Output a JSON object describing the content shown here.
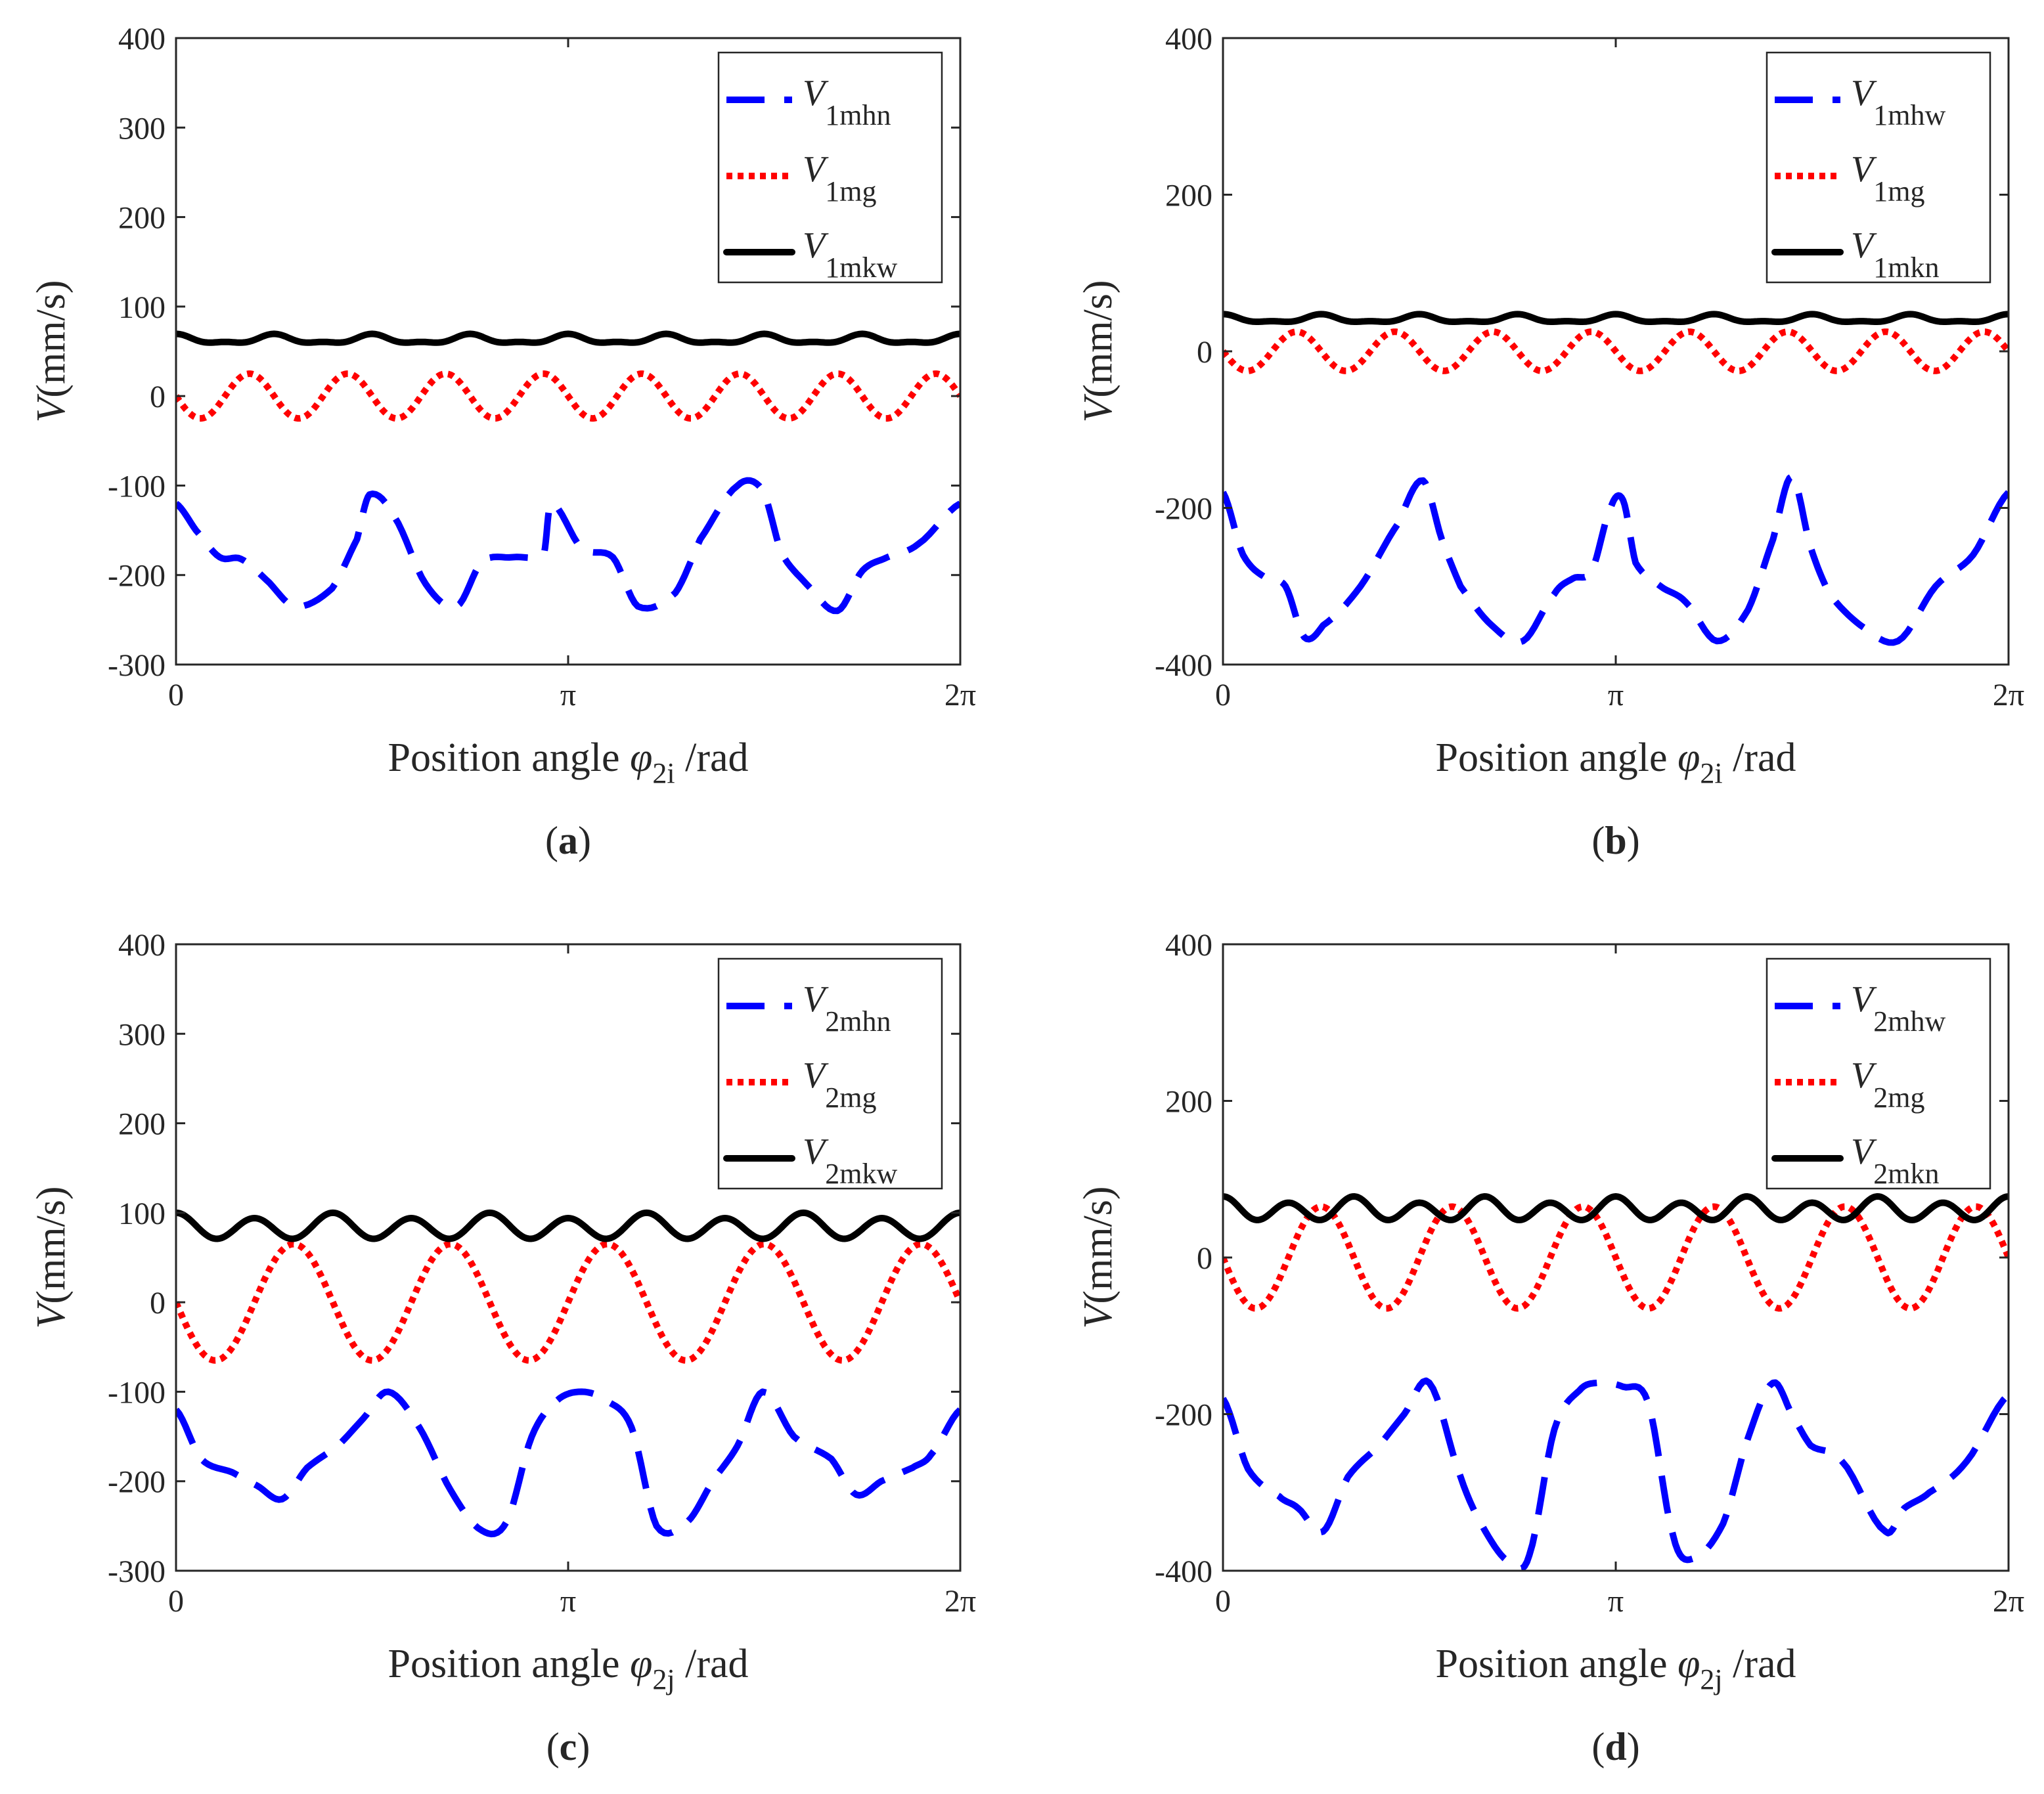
{
  "chart_data": [
    {
      "panel": "(a)",
      "caption_letter": "a",
      "type": "line",
      "xlabel": "Position angle",
      "xsymbol": "φ",
      "xsymbol_sub": "2i",
      "xunit": "/rad",
      "ylabel_symbol": "V",
      "ylabel_unit": "(mm/s)",
      "xlim": [
        0,
        6.2832
      ],
      "ylim": [
        -300,
        400
      ],
      "yticks": [
        -300,
        -200,
        -100,
        0,
        100,
        200,
        300,
        400
      ],
      "xtick_labels": [
        "0",
        "π",
        "2π"
      ],
      "xtick_values": [
        0,
        3.1416,
        6.2832
      ],
      "legend_position": "top-right",
      "series": [
        {
          "name_symbol": "V",
          "name_sub": "1mhn",
          "style": "dashed",
          "color": "#0000ff",
          "x": [
            0,
            0.16,
            0.35,
            0.52,
            0.72,
            0.95,
            1.25,
            1.45,
            1.55,
            1.75,
            2.0,
            2.25,
            2.45,
            2.7,
            2.95,
            3.0,
            3.25,
            3.5,
            3.7,
            4.0,
            4.2,
            4.5,
            4.7,
            4.85,
            5.05,
            5.3,
            5.5,
            5.7,
            5.95,
            6.2832
          ],
          "y": [
            -120,
            -150,
            -180,
            -182,
            -205,
            -235,
            -215,
            -160,
            -110,
            -135,
            -210,
            -235,
            -185,
            -180,
            -175,
            -120,
            -170,
            -180,
            -235,
            -220,
            -160,
            -100,
            -105,
            -175,
            -210,
            -240,
            -195,
            -180,
            -165,
            -120
          ]
        },
        {
          "name_symbol": "V",
          "name_sub": "1mg",
          "style": "dotted",
          "color": "#ff0000",
          "fn": "sine",
          "amplitude": -25,
          "cycles": 8,
          "offset": 0
        },
        {
          "name_symbol": "V",
          "name_sub": "1mkw",
          "style": "solid",
          "color": "#000000",
          "fn": "ripple",
          "mean": 63,
          "amplitude": 4.5,
          "cycles": 8,
          "amplitude2": 2,
          "cycles2": 16
        }
      ]
    },
    {
      "panel": "(b)",
      "caption_letter": "b",
      "type": "line",
      "xlabel": "Position angle",
      "xsymbol": "φ",
      "xsymbol_sub": "2i",
      "xunit": "/rad",
      "ylabel_symbol": "V",
      "ylabel_unit": "(mm/s)",
      "xlim": [
        0,
        6.2832
      ],
      "ylim": [
        -400,
        400
      ],
      "yticks": [
        -400,
        -200,
        0,
        200,
        400
      ],
      "xtick_labels": [
        "0",
        "π",
        "2π"
      ],
      "xtick_values": [
        0,
        3.1416,
        6.2832
      ],
      "legend_position": "top-right",
      "series": [
        {
          "name_symbol": "V",
          "name_sub": "1mhw",
          "style": "dashed",
          "color": "#0000ff",
          "x": [
            0,
            0.16,
            0.35,
            0.5,
            0.65,
            0.8,
            1.1,
            1.4,
            1.6,
            1.75,
            1.9,
            2.15,
            2.4,
            2.65,
            2.8,
            2.95,
            3.1,
            3.2,
            3.3,
            3.5,
            3.7,
            3.95,
            4.2,
            4.4,
            4.55,
            4.7,
            4.85,
            5.1,
            5.4,
            5.7,
            6.0,
            6.2832
          ],
          "y": [
            -180,
            -260,
            -290,
            -300,
            -365,
            -350,
            -300,
            -220,
            -165,
            -240,
            -300,
            -350,
            -370,
            -310,
            -290,
            -280,
            -200,
            -190,
            -270,
            -300,
            -320,
            -370,
            -330,
            -240,
            -160,
            -250,
            -310,
            -350,
            -370,
            -300,
            -260,
            -180
          ]
        },
        {
          "name_symbol": "V",
          "name_sub": "1mg",
          "style": "dotted",
          "color": "#ff0000",
          "fn": "sine",
          "amplitude": -25,
          "cycles": 8,
          "offset": 0
        },
        {
          "name_symbol": "V",
          "name_sub": "1mkn",
          "style": "solid",
          "color": "#000000",
          "fn": "ripple",
          "mean": 41,
          "amplitude": 4.5,
          "cycles": 8,
          "amplitude2": 2,
          "cycles2": 16
        }
      ]
    },
    {
      "panel": "(c)",
      "caption_letter": "c",
      "type": "line",
      "xlabel": "Position angle",
      "xsymbol": "φ",
      "xsymbol_sub": "2j",
      "xunit": "/rad",
      "ylabel_symbol": "V",
      "ylabel_unit": "(mm/s)",
      "xlim": [
        0,
        6.2832
      ],
      "ylim": [
        -300,
        400
      ],
      "yticks": [
        -300,
        -200,
        -100,
        0,
        100,
        200,
        300,
        400
      ],
      "xtick_labels": [
        "0",
        "π",
        "2π"
      ],
      "xtick_values": [
        0,
        3.1416,
        6.2832
      ],
      "legend_position": "top-right",
      "series": [
        {
          "name_symbol": "V",
          "name_sub": "2mhn",
          "style": "dashed",
          "color": "#0000ff",
          "x": [
            0,
            0.2,
            0.45,
            0.65,
            0.85,
            1.05,
            1.3,
            1.5,
            1.7,
            1.95,
            2.2,
            2.45,
            2.65,
            2.85,
            3.05,
            3.25,
            3.45,
            3.65,
            3.85,
            4.1,
            4.3,
            4.5,
            4.7,
            4.95,
            5.25,
            5.45,
            5.65,
            5.9,
            6.05,
            6.2832
          ],
          "y": [
            -120,
            -175,
            -190,
            -205,
            -220,
            -185,
            -160,
            -130,
            -100,
            -140,
            -210,
            -255,
            -245,
            -150,
            -110,
            -100,
            -110,
            -140,
            -250,
            -245,
            -200,
            -160,
            -100,
            -150,
            -175,
            -215,
            -200,
            -185,
            -170,
            -120
          ]
        },
        {
          "name_symbol": "V",
          "name_sub": "2mg",
          "style": "dotted",
          "color": "#ff0000",
          "fn": "sine",
          "amplitude": -65,
          "cycles": 5,
          "offset": 0
        },
        {
          "name_symbol": "V",
          "name_sub": "2mkw",
          "style": "solid",
          "color": "#000000",
          "fn": "ripple",
          "mean": 84,
          "amplitude": 13,
          "cycles": 10,
          "amplitude2": 3,
          "cycles2": 5
        }
      ]
    },
    {
      "panel": "(d)",
      "caption_letter": "d",
      "type": "line",
      "xlabel": "Position angle",
      "xsymbol": "φ",
      "xsymbol_sub": "2j",
      "xunit": "/rad",
      "ylabel_symbol": "V",
      "ylabel_unit": "(mm/s)",
      "xlim": [
        0,
        6.2832
      ],
      "ylim": [
        -400,
        400
      ],
      "yticks": [
        -400,
        -200,
        0,
        200,
        400
      ],
      "xtick_labels": [
        "0",
        "π",
        "2π"
      ],
      "xtick_values": [
        0,
        3.1416,
        6.2832
      ],
      "legend_position": "top-right",
      "series": [
        {
          "name_symbol": "V",
          "name_sub": "2mhw",
          "style": "dashed",
          "color": "#0000ff",
          "x": [
            0,
            0.2,
            0.45,
            0.6,
            0.8,
            1.0,
            1.25,
            1.45,
            1.65,
            1.9,
            2.1,
            2.3,
            2.45,
            2.65,
            2.85,
            3.0,
            3.2,
            3.4,
            3.6,
            3.75,
            4.0,
            4.2,
            4.4,
            4.55,
            4.7,
            4.95,
            5.3,
            5.45,
            5.65,
            5.95,
            6.2832
          ],
          "y": [
            -180,
            -270,
            -305,
            -320,
            -350,
            -280,
            -240,
            -200,
            -160,
            -280,
            -350,
            -390,
            -380,
            -220,
            -170,
            -160,
            -165,
            -185,
            -355,
            -385,
            -340,
            -230,
            -160,
            -200,
            -240,
            -260,
            -350,
            -320,
            -300,
            -260,
            -175
          ]
        },
        {
          "name_symbol": "V",
          "name_sub": "2mg",
          "style": "dotted",
          "color": "#ff0000",
          "fn": "sine",
          "amplitude": -65,
          "cycles": 6,
          "offset": 0
        },
        {
          "name_symbol": "V",
          "name_sub": "2mkn",
          "style": "solid",
          "color": "#000000",
          "fn": "ripple",
          "mean": 61,
          "amplitude": 13,
          "cycles": 12,
          "amplitude2": 4,
          "cycles2": 6
        }
      ]
    }
  ]
}
